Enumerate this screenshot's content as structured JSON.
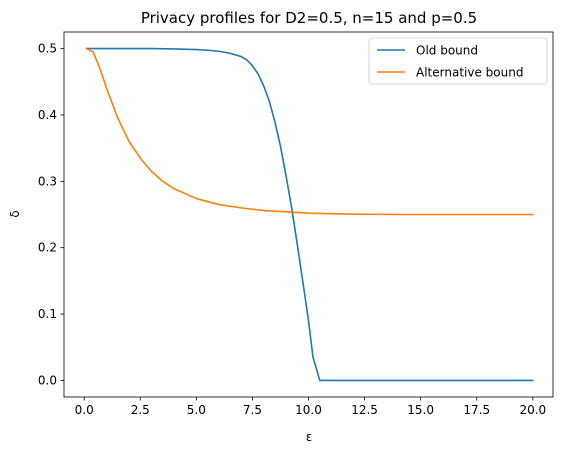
{
  "chart_data": {
    "type": "line",
    "title": "Privacy profiles for D2=0.5, n=15 and p=0.5",
    "xlabel": "ε",
    "ylabel": "δ",
    "xlim": [
      -0.9,
      20.9
    ],
    "ylim": [
      -0.025,
      0.525
    ],
    "xticks": [
      "0.0",
      "2.5",
      "5.0",
      "7.5",
      "10.0",
      "12.5",
      "15.0",
      "17.5",
      "20.0"
    ],
    "xtick_values": [
      0,
      2.5,
      5,
      7.5,
      10,
      12.5,
      15,
      17.5,
      20
    ],
    "yticks": [
      "0.0",
      "0.1",
      "0.2",
      "0.3",
      "0.4",
      "0.5"
    ],
    "ytick_values": [
      0,
      0.1,
      0.2,
      0.3,
      0.4,
      0.5
    ],
    "grid": false,
    "legend_position": "top-right",
    "series": [
      {
        "name": "Old bound",
        "color": "#1f77b4",
        "x": [
          0.1,
          1,
          2,
          3,
          4,
          5,
          5.5,
          6,
          6.5,
          7,
          7.25,
          7.5,
          7.75,
          8,
          8.25,
          8.5,
          8.75,
          9,
          9.25,
          9.5,
          9.75,
          10,
          10.2,
          10.35,
          10.5,
          11,
          12,
          14,
          16,
          18,
          20
        ],
        "y": [
          0.5,
          0.5,
          0.5,
          0.5,
          0.4995,
          0.4985,
          0.4975,
          0.496,
          0.493,
          0.488,
          0.483,
          0.474,
          0.462,
          0.444,
          0.421,
          0.39,
          0.353,
          0.308,
          0.26,
          0.205,
          0.148,
          0.09,
          0.035,
          0.018,
          0.0,
          0.0,
          0.0,
          0.0,
          0.0,
          0.0,
          0.0
        ]
      },
      {
        "name": "Alternative bound",
        "color": "#ff7f0e",
        "x": [
          0.1,
          0.4,
          0.7,
          1,
          1.5,
          2,
          2.5,
          3,
          3.5,
          4,
          5,
          6,
          7,
          8,
          9,
          10,
          12,
          14,
          16,
          18,
          20
        ],
        "y": [
          0.5,
          0.495,
          0.47,
          0.44,
          0.395,
          0.36,
          0.335,
          0.315,
          0.3,
          0.289,
          0.274,
          0.265,
          0.26,
          0.256,
          0.254,
          0.252,
          0.2505,
          0.25,
          0.25,
          0.25,
          0.25
        ]
      }
    ]
  }
}
